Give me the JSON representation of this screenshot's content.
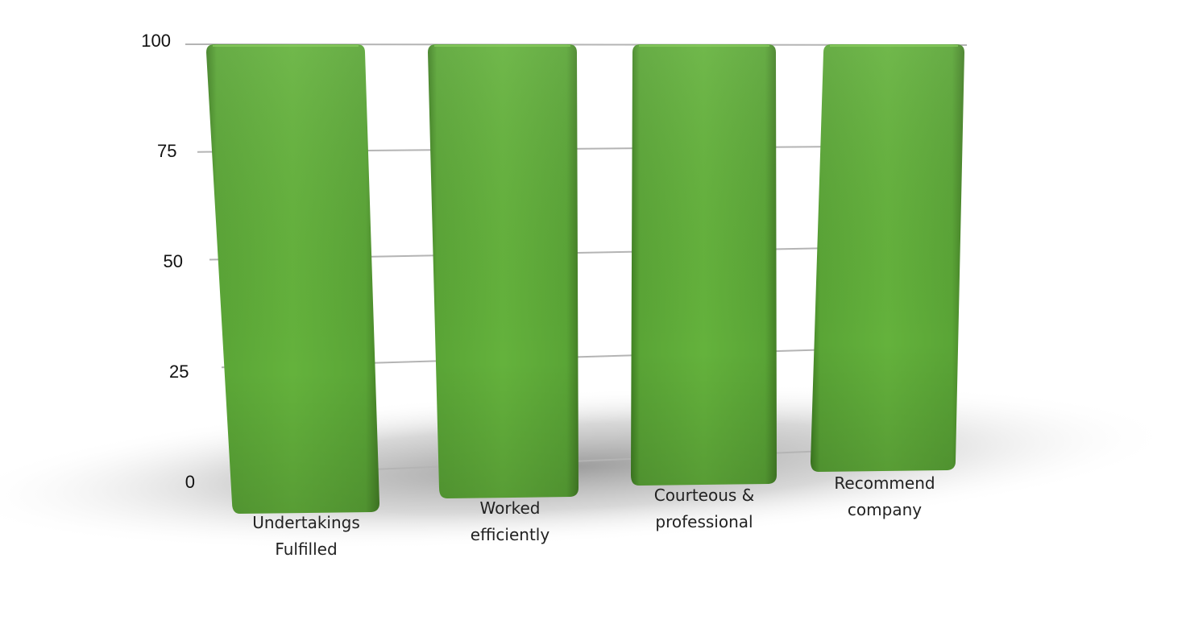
{
  "chart_data": {
    "type": "bar",
    "categories": [
      [
        "Undertakings",
        "Fulfilled"
      ],
      [
        "Worked",
        "efficiently"
      ],
      [
        "Courteous &",
        "professional"
      ],
      [
        "Recommend",
        "company"
      ]
    ],
    "series": [
      {
        "values": [
          100,
          100,
          100,
          100
        ]
      }
    ],
    "yticks": [
      "0",
      "25",
      "50",
      "75",
      "100"
    ],
    "ylim": [
      0,
      100
    ],
    "grid": true,
    "legend": "none",
    "style": "3d-perspective",
    "colors": {
      "bar_light": "#6cb63f",
      "bar_mid": "#5aa536",
      "bar_dark": "#3f7f22",
      "grid": "#b4b4b4",
      "shadow": "#8f8f8f"
    }
  }
}
